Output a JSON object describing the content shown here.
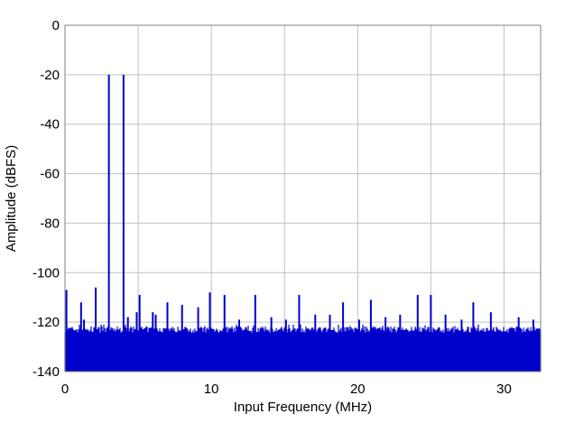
{
  "chart_data": {
    "type": "line",
    "title": "",
    "xlabel": "Input Frequency (MHz)",
    "ylabel": "Amplitude (dBFS)",
    "xlim": [
      0,
      32.5
    ],
    "ylim": [
      -140,
      0
    ],
    "x_ticks": [
      0,
      10,
      20,
      30
    ],
    "y_ticks": [
      0,
      -20,
      -40,
      -60,
      -80,
      -100,
      -120,
      -140
    ],
    "x_tick_labels": [
      "0",
      "10",
      "20",
      "30"
    ],
    "y_tick_labels": [
      "0",
      "-20",
      "-40",
      "-60",
      "-80",
      "-100",
      "-120",
      "-140"
    ],
    "grid": true,
    "legend": "none",
    "colors": {
      "series": "#0000cc",
      "grid": "#c0c0c0",
      "frame": "#808080",
      "background": "#ffffff"
    },
    "noise_floor": {
      "range_dbfs": [
        -140,
        -121
      ],
      "typical_top_dbfs": -123
    },
    "series": [
      {
        "points": [
          [
            0.1,
            -107
          ],
          [
            1.1,
            -112
          ],
          [
            1.3,
            -119
          ],
          [
            2.1,
            -106
          ],
          [
            3.0,
            -20
          ],
          [
            4.0,
            -20
          ],
          [
            4.3,
            -118
          ],
          [
            4.9,
            -116
          ],
          [
            5.1,
            -109
          ],
          [
            6.0,
            -116
          ],
          [
            6.2,
            -117
          ],
          [
            7.0,
            -112
          ],
          [
            8.0,
            -113
          ],
          [
            9.1,
            -114
          ],
          [
            9.9,
            -108
          ],
          [
            10.9,
            -109
          ],
          [
            11.9,
            -119
          ],
          [
            13.0,
            -109
          ],
          [
            14.1,
            -118
          ],
          [
            15.1,
            -119
          ],
          [
            16.0,
            -109
          ],
          [
            17.1,
            -117
          ],
          [
            18.1,
            -117
          ],
          [
            19.0,
            -112
          ],
          [
            20.1,
            -119
          ],
          [
            20.9,
            -111
          ],
          [
            21.9,
            -118
          ],
          [
            22.9,
            -117
          ],
          [
            24.1,
            -109
          ],
          [
            25.0,
            -109
          ],
          [
            26.0,
            -117
          ],
          [
            27.1,
            -119
          ],
          [
            27.9,
            -112
          ],
          [
            29.1,
            -116
          ],
          [
            31.0,
            -118
          ],
          [
            32.0,
            -119
          ]
        ]
      }
    ]
  }
}
